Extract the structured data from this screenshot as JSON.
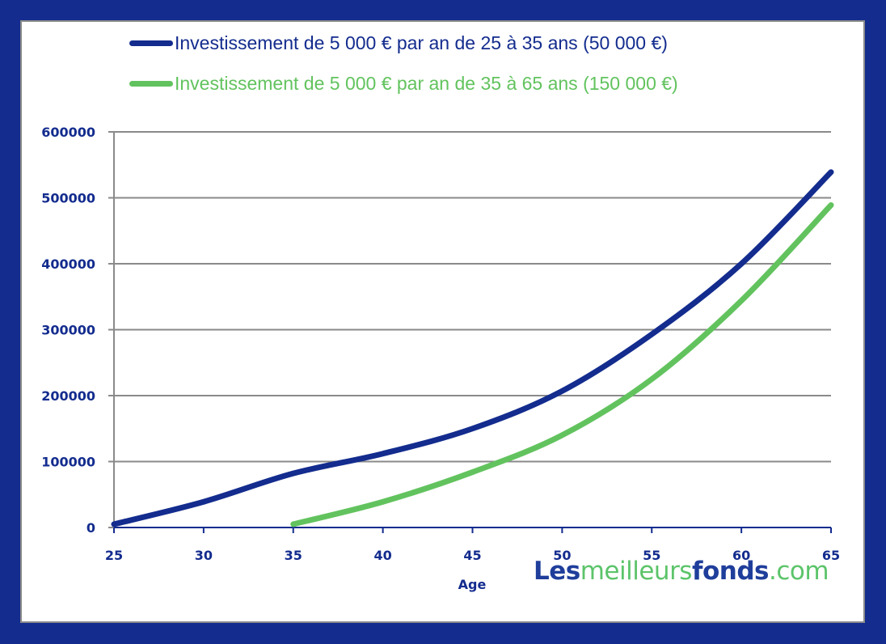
{
  "chart_data": {
    "type": "line",
    "title": "",
    "xlabel": "Age",
    "ylabel": "",
    "xlim": [
      25,
      65
    ],
    "ylim": [
      0,
      600000
    ],
    "x_ticks": [
      "25",
      "30",
      "35",
      "40",
      "45",
      "50",
      "55",
      "60",
      "65"
    ],
    "y_ticks": [
      "0",
      "100000",
      "200000",
      "300000",
      "400000",
      "500000",
      "600000"
    ],
    "grid": "horizontal",
    "legend_position": "top",
    "x": [
      25,
      30,
      35,
      40,
      45,
      50,
      55,
      60,
      65
    ],
    "series": [
      {
        "name": "Investissement de 5 000 € par an de 25 à 35 ans (50 000 €)",
        "color": "#132c8e",
        "values": [
          5000,
          39000,
          82000,
          112000,
          150000,
          207000,
          293000,
          400000,
          539000
        ]
      },
      {
        "name": "Investissement de 5 000 € par an de 35 à 65 ans (150 000 €)",
        "color": "#62c35e",
        "values": [
          null,
          null,
          5000,
          39000,
          84000,
          140000,
          225000,
          344000,
          489000
        ]
      }
    ]
  },
  "legend": {
    "items": [
      {
        "label": "Investissement de 5 000 € par an de 25 à 35 ans (50 000 €)",
        "color": "#132c8e"
      },
      {
        "label": "Investissement de 5 000 € par an de 35 à 65 ans (150 000 €)",
        "color": "#62c35e"
      }
    ]
  },
  "axis": {
    "x_label": "Age"
  },
  "logo": {
    "part1": "Les",
    "part2": "meilleurs",
    "part3": "fonds",
    "part4": ".com"
  },
  "colors": {
    "frame": "#132c8e",
    "series1": "#132c8e",
    "series2": "#62c35e",
    "grid": "#8a8a8a"
  }
}
